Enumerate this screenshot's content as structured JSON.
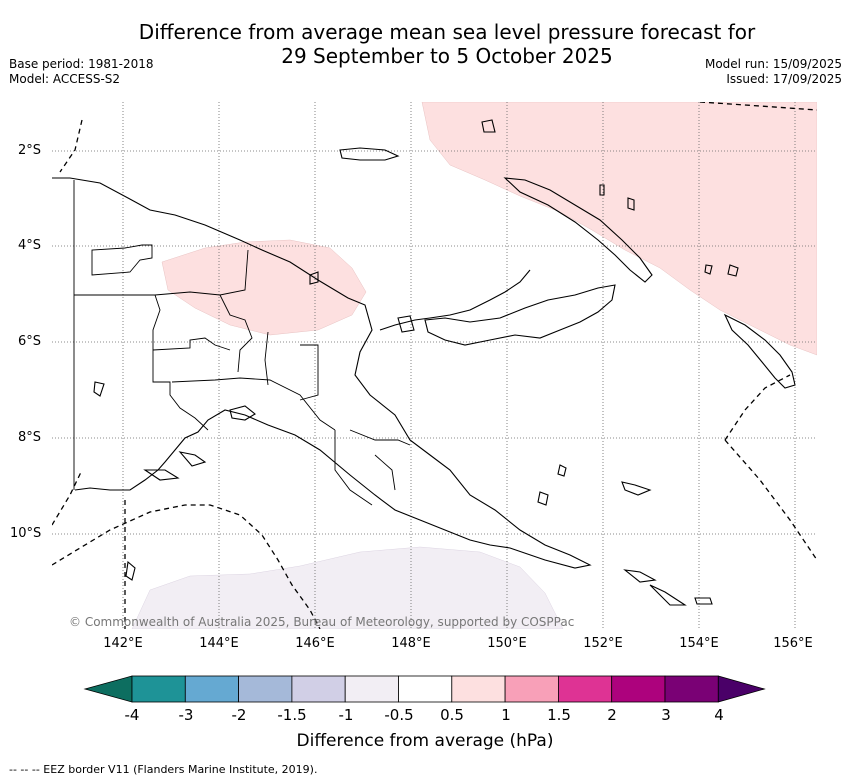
{
  "title_line1": "Difference from average mean sea level pressure forecast for",
  "title_line2": "29 September to 5 October 2025",
  "meta_left": {
    "base_period": "Base period: 1981-2018",
    "model": "Model: ACCESS-S2"
  },
  "meta_right": {
    "model_run": "Model run: 15/09/2025",
    "issued": "Issued: 17/09/2025"
  },
  "lat_labels": [
    "2°S",
    "4°S",
    "6°S",
    "8°S",
    "10°S"
  ],
  "lon_labels": [
    "142°E",
    "144°E",
    "146°E",
    "148°E",
    "150°E",
    "152°E",
    "154°E",
    "156°E"
  ],
  "copyright": "© Commonwealth of Australia 2025, Bureau of Meteorology, supported by COSPPac",
  "colorbar": {
    "title": "Difference from average (hPa)",
    "ticks": [
      "-4",
      "-3",
      "-2",
      "-1.5",
      "-1",
      "-0.5",
      "0.5",
      "1",
      "1.5",
      "2",
      "3",
      "4"
    ],
    "colors": [
      "#0d6e60",
      "#1e9397",
      "#65a9d2",
      "#a5b9d9",
      "#d1cfe6",
      "#f2eef4",
      "#ffffff",
      "#fde0e0",
      "#f8a0b8",
      "#de3394",
      "#ad027d",
      "#7a0175",
      "#4a0068"
    ]
  },
  "footnote": "-- -- -- EEZ border V11 (Flanders Marine Institute, 2019)."
}
